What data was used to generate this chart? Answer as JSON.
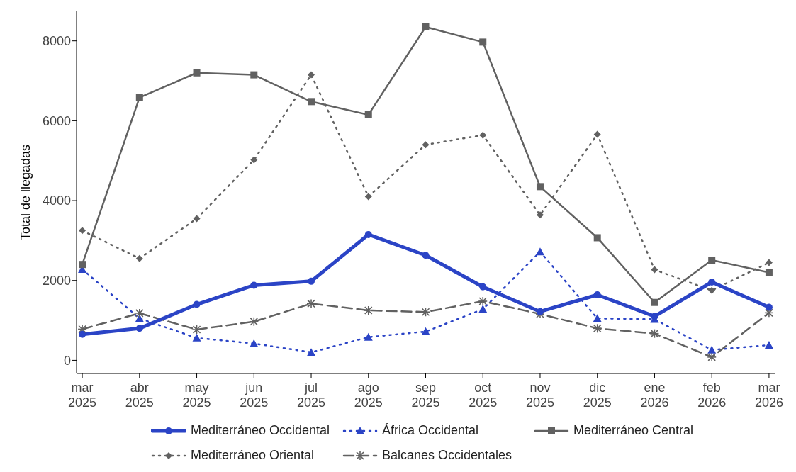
{
  "chart_data": {
    "type": "line",
    "ylabel": "Total de llegadas",
    "categories": [
      "mar\n2025",
      "abr\n2025",
      "may\n2025",
      "jun\n2025",
      "jul\n2025",
      "ago\n2025",
      "sep\n2025",
      "oct\n2025",
      "nov\n2025",
      "dic\n2025",
      "ene\n2026",
      "feb\n2026",
      "mar\n2026"
    ],
    "series": [
      {
        "name": "Mediterráneo Occidental",
        "color": "#2b44c6",
        "marker": "circle",
        "line_style": "solid",
        "values": [
          650,
          800,
          1400,
          1880,
          1980,
          3150,
          2630,
          1840,
          1220,
          1640,
          1100,
          1960,
          1330
        ]
      },
      {
        "name": "África Occidental",
        "color": "#2b44c6",
        "marker": "triangle",
        "line_style": "dotted",
        "values": [
          2280,
          1050,
          560,
          420,
          200,
          580,
          720,
          1280,
          2720,
          1050,
          1030,
          260,
          380
        ]
      },
      {
        "name": "Mediterráneo Central",
        "color": "#616161",
        "marker": "square",
        "line_style": "solid",
        "values": [
          2400,
          6580,
          7200,
          7150,
          6480,
          6150,
          8350,
          7970,
          4350,
          3070,
          1450,
          2510,
          2200
        ]
      },
      {
        "name": "Mediterráneo Oriental",
        "color": "#616161",
        "marker": "diamond",
        "line_style": "dotted",
        "values": [
          3250,
          2550,
          3550,
          5020,
          7150,
          4100,
          5400,
          5640,
          3640,
          5660,
          2270,
          1750,
          2450
        ]
      },
      {
        "name": "Balcanes Occidentales",
        "color": "#616161",
        "marker": "cross",
        "line_style": "dashed",
        "values": [
          780,
          1180,
          770,
          970,
          1420,
          1250,
          1210,
          1480,
          1160,
          800,
          670,
          80,
          1190
        ]
      }
    ],
    "ylim": [
      -330,
      8740
    ],
    "yticks": [
      0,
      2000,
      4000,
      6000,
      8000
    ],
    "grid": false,
    "legend": "bottom"
  }
}
